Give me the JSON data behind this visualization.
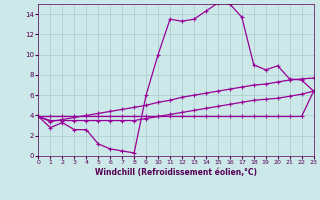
{
  "x_values": [
    0,
    1,
    2,
    3,
    4,
    5,
    6,
    7,
    8,
    9,
    10,
    11,
    12,
    13,
    14,
    15,
    16,
    17,
    18,
    19,
    20,
    21,
    22,
    23
  ],
  "line1_y": [
    3.9,
    2.8,
    3.3,
    2.6,
    2.6,
    1.2,
    0.7,
    0.5,
    0.3,
    6.0,
    10.0,
    13.5,
    13.3,
    13.5,
    14.3,
    15.1,
    15.0,
    13.7,
    9.0,
    8.5,
    8.9,
    7.6,
    7.5,
    6.4
  ],
  "line2_y": [
    3.9,
    3.5,
    3.5,
    3.5,
    3.5,
    3.5,
    3.5,
    3.5,
    3.5,
    3.7,
    3.9,
    4.1,
    4.3,
    4.5,
    4.7,
    4.9,
    5.1,
    5.3,
    5.5,
    5.6,
    5.7,
    5.9,
    6.1,
    6.4
  ],
  "line3_y": [
    3.9,
    3.4,
    3.6,
    3.8,
    4.0,
    4.2,
    4.4,
    4.6,
    4.8,
    5.0,
    5.3,
    5.5,
    5.8,
    6.0,
    6.2,
    6.4,
    6.6,
    6.8,
    7.0,
    7.1,
    7.3,
    7.5,
    7.6,
    7.7
  ],
  "line4_y": [
    3.9,
    3.9,
    3.9,
    3.9,
    3.9,
    3.9,
    3.9,
    3.9,
    3.9,
    3.9,
    3.9,
    3.9,
    3.9,
    3.9,
    3.9,
    3.9,
    3.9,
    3.9,
    3.9,
    3.9,
    3.9,
    3.9,
    3.9,
    6.4
  ],
  "color": "#990099",
  "bg_color": "#cce8e8",
  "grid_color": "#aacccc",
  "xlabel": "Windchill (Refroidissement éolien,°C)",
  "xlim": [
    0,
    23
  ],
  "ylim": [
    0,
    15
  ],
  "yticks": [
    0,
    2,
    4,
    6,
    8,
    10,
    12,
    14
  ],
  "xticks": [
    0,
    1,
    2,
    3,
    4,
    5,
    6,
    7,
    8,
    9,
    10,
    11,
    12,
    13,
    14,
    15,
    16,
    17,
    18,
    19,
    20,
    21,
    22,
    23
  ]
}
